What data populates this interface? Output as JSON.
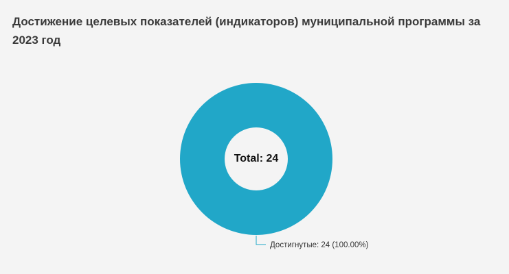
{
  "title": "Достижение целевых показателей (индикаторов) муниципальной программы за 2023 год",
  "center_label": "Total: 24",
  "chart_data": {
    "type": "pie",
    "title": "Достижение целевых показателей (индикаторов) муниципальной программы за 2023 год",
    "donut": true,
    "total": 24,
    "slices": [
      {
        "name": "Достигнутые",
        "value": 24,
        "percent": 100.0,
        "color": "#21a7c8",
        "label": "Достигнутые: 24 (100.00%)"
      }
    ]
  }
}
